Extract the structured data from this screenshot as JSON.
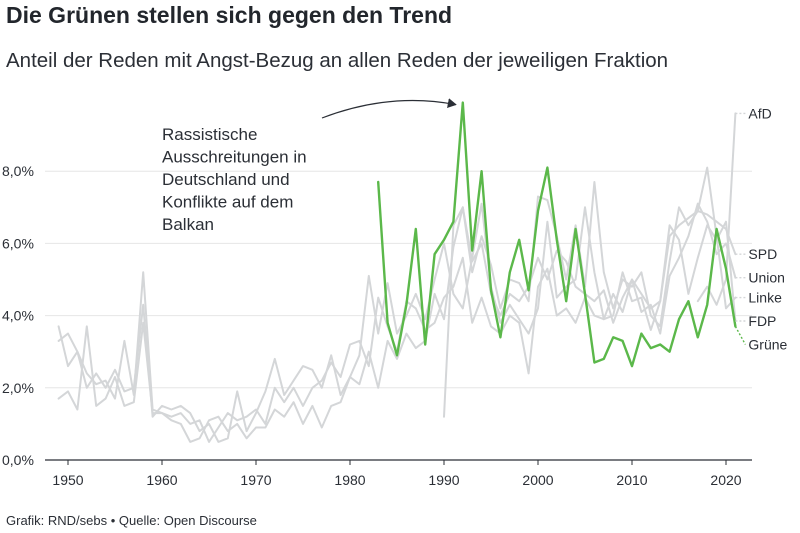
{
  "header": {
    "title": "Die Grünen stellen sich gegen den Trend",
    "subtitle": "Anteil der Reden mit Angst-Bezug an allen Reden der jeweiligen Fraktion"
  },
  "footer": {
    "source": "Grafik: RND/sebs • Quelle: Open Discourse"
  },
  "colors": {
    "highlight": "#5bb84a",
    "context": "#d4d6d8",
    "grid": "#e6e6e6",
    "text": "#2b2f36"
  },
  "chart_data": {
    "type": "line",
    "title": "Die Grünen stellen sich gegen den Trend",
    "subtitle": "Anteil der Reden mit Angst-Bezug an allen Reden der jeweiligen Fraktion",
    "xlim": [
      1949,
      2022
    ],
    "ylim": [
      0,
      10
    ],
    "x_ticks": [
      1950,
      1960,
      1970,
      1980,
      1990,
      2000,
      2010,
      2020
    ],
    "x_tick_labels": [
      "1950",
      "1960",
      "1970",
      "1980",
      "1990",
      "2000",
      "2010",
      "2020"
    ],
    "y_ticks": [
      0,
      2,
      4,
      6,
      8
    ],
    "y_tick_labels": [
      "0,0%",
      "2,0%",
      "4,0%",
      "6,0%",
      "8,0%"
    ],
    "grid": "horizontal",
    "annotation": {
      "lines": [
        "Rassistische",
        "Ausschreitungen in",
        "Deutschland und",
        "Konflikte auf dem",
        "Balkan"
      ],
      "target": [
        1992,
        9.9
      ]
    },
    "series": [
      {
        "name": "AfD",
        "highlight": false,
        "label_y": 9.6,
        "points": [
          [
            2017,
            4.4
          ],
          [
            2018,
            4.8
          ],
          [
            2019,
            4.3
          ],
          [
            2020,
            5.0
          ],
          [
            2021,
            9.6
          ]
        ]
      },
      {
        "name": "SPD",
        "highlight": false,
        "label_y": 5.7,
        "points": [
          [
            1949,
            1.7
          ],
          [
            1950,
            1.9
          ],
          [
            1951,
            1.4
          ],
          [
            1952,
            3.7
          ],
          [
            1953,
            1.5
          ],
          [
            1954,
            1.7
          ],
          [
            1955,
            2.3
          ],
          [
            1956,
            1.5
          ],
          [
            1957,
            1.6
          ],
          [
            1958,
            3.8
          ],
          [
            1959,
            1.3
          ],
          [
            1960,
            1.3
          ],
          [
            1961,
            1.1
          ],
          [
            1962,
            1.0
          ],
          [
            1963,
            0.5
          ],
          [
            1964,
            0.6
          ],
          [
            1965,
            1.1
          ],
          [
            1966,
            1.2
          ],
          [
            1967,
            0.8
          ],
          [
            1968,
            1.0
          ],
          [
            1969,
            0.6
          ],
          [
            1970,
            0.9
          ],
          [
            1971,
            0.9
          ],
          [
            1972,
            1.4
          ],
          [
            1973,
            1.2
          ],
          [
            1974,
            1.6
          ],
          [
            1975,
            1.0
          ],
          [
            1976,
            1.5
          ],
          [
            1977,
            0.9
          ],
          [
            1978,
            1.5
          ],
          [
            1979,
            1.6
          ],
          [
            1980,
            2.3
          ],
          [
            1981,
            2.1
          ],
          [
            1982,
            3.0
          ],
          [
            1983,
            2.0
          ],
          [
            1984,
            3.3
          ],
          [
            1985,
            2.8
          ],
          [
            1986,
            3.5
          ],
          [
            1987,
            3.1
          ],
          [
            1988,
            3.3
          ],
          [
            1989,
            4.6
          ],
          [
            1990,
            3.9
          ],
          [
            1991,
            5.9
          ],
          [
            1992,
            7.0
          ],
          [
            1993,
            5.5
          ],
          [
            1994,
            6.0
          ],
          [
            1995,
            4.6
          ],
          [
            1996,
            4.0
          ],
          [
            1997,
            4.6
          ],
          [
            1998,
            4.4
          ],
          [
            1999,
            4.8
          ],
          [
            2000,
            5.6
          ],
          [
            2001,
            5.0
          ],
          [
            2002,
            5.8
          ],
          [
            2003,
            5.5
          ],
          [
            2004,
            4.8
          ],
          [
            2005,
            4.6
          ],
          [
            2006,
            4.4
          ],
          [
            2007,
            4.7
          ],
          [
            2008,
            3.8
          ],
          [
            2009,
            4.5
          ],
          [
            2010,
            5.0
          ],
          [
            2011,
            4.6
          ],
          [
            2012,
            4.2
          ],
          [
            2013,
            4.4
          ],
          [
            2014,
            6.2
          ],
          [
            2015,
            6.5
          ],
          [
            2016,
            6.7
          ],
          [
            2017,
            6.9
          ],
          [
            2018,
            6.8
          ],
          [
            2019,
            6.6
          ],
          [
            2020,
            6.4
          ],
          [
            2021,
            5.7
          ]
        ]
      },
      {
        "name": "Union",
        "highlight": false,
        "label_y": 5.05,
        "points": [
          [
            1949,
            3.7
          ],
          [
            1950,
            2.6
          ],
          [
            1951,
            3.0
          ],
          [
            1952,
            2.4
          ],
          [
            1953,
            2.1
          ],
          [
            1954,
            2.2
          ],
          [
            1955,
            1.7
          ],
          [
            1956,
            3.3
          ],
          [
            1957,
            1.8
          ],
          [
            1958,
            5.2
          ],
          [
            1959,
            1.4
          ],
          [
            1960,
            1.3
          ],
          [
            1961,
            1.2
          ],
          [
            1962,
            1.3
          ],
          [
            1963,
            1.0
          ],
          [
            1964,
            1.1
          ],
          [
            1965,
            0.5
          ],
          [
            1966,
            0.9
          ],
          [
            1967,
            1.3
          ],
          [
            1968,
            1.1
          ],
          [
            1969,
            1.2
          ],
          [
            1970,
            1.4
          ],
          [
            1971,
            1.0
          ],
          [
            1972,
            2.0
          ],
          [
            1973,
            1.6
          ],
          [
            1974,
            2.0
          ],
          [
            1975,
            1.5
          ],
          [
            1976,
            2.0
          ],
          [
            1977,
            2.2
          ],
          [
            1978,
            2.7
          ],
          [
            1979,
            2.3
          ],
          [
            1980,
            3.2
          ],
          [
            1981,
            3.3
          ],
          [
            1982,
            2.6
          ],
          [
            1983,
            4.5
          ],
          [
            1984,
            3.7
          ],
          [
            1985,
            3.0
          ],
          [
            1986,
            4.4
          ],
          [
            1987,
            4.2
          ],
          [
            1988,
            3.6
          ],
          [
            1989,
            3.8
          ],
          [
            1990,
            4.5
          ],
          [
            1991,
            4.8
          ],
          [
            1992,
            5.6
          ],
          [
            1993,
            3.8
          ],
          [
            1994,
            4.5
          ],
          [
            1995,
            3.7
          ],
          [
            1996,
            3.5
          ],
          [
            1997,
            4.0
          ],
          [
            1998,
            3.8
          ],
          [
            1999,
            2.4
          ],
          [
            2000,
            4.8
          ],
          [
            2001,
            5.3
          ],
          [
            2002,
            4.0
          ],
          [
            2003,
            4.2
          ],
          [
            2004,
            3.8
          ],
          [
            2005,
            4.5
          ],
          [
            2006,
            4.0
          ],
          [
            2007,
            3.9
          ],
          [
            2008,
            4.6
          ],
          [
            2009,
            4.1
          ],
          [
            2010,
            5.0
          ],
          [
            2011,
            4.1
          ],
          [
            2012,
            4.3
          ],
          [
            2013,
            3.5
          ],
          [
            2014,
            5.1
          ],
          [
            2015,
            5.6
          ],
          [
            2016,
            6.2
          ],
          [
            2017,
            7.1
          ],
          [
            2018,
            6.6
          ],
          [
            2019,
            5.7
          ],
          [
            2020,
            6.0
          ],
          [
            2021,
            5.05
          ]
        ]
      },
      {
        "name": "Linke",
        "highlight": false,
        "label_y": 4.5,
        "points": [
          [
            1990,
            1.2
          ],
          [
            1991,
            6.5
          ],
          [
            1992,
            7.0
          ],
          [
            1993,
            5.2
          ],
          [
            1994,
            6.2
          ],
          [
            1995,
            5.4
          ],
          [
            1996,
            4.2
          ],
          [
            1997,
            5.0
          ],
          [
            1998,
            4.9
          ],
          [
            1999,
            4.4
          ],
          [
            2000,
            7.3
          ],
          [
            2001,
            7.2
          ],
          [
            2002,
            6.2
          ],
          [
            2003,
            5.0
          ],
          [
            2004,
            6.5
          ],
          [
            2005,
            4.8
          ],
          [
            2006,
            7.7
          ],
          [
            2007,
            5.2
          ],
          [
            2008,
            4.2
          ],
          [
            2009,
            5.0
          ],
          [
            2010,
            4.8
          ],
          [
            2011,
            5.2
          ],
          [
            2012,
            4.0
          ],
          [
            2013,
            3.7
          ],
          [
            2014,
            5.5
          ],
          [
            2015,
            7.0
          ],
          [
            2016,
            6.5
          ],
          [
            2017,
            6.9
          ],
          [
            2018,
            8.1
          ],
          [
            2019,
            6.2
          ],
          [
            2020,
            4.2
          ],
          [
            2021,
            4.5
          ]
        ]
      },
      {
        "name": "FDP",
        "highlight": false,
        "label_y": 3.85,
        "points": [
          [
            1949,
            3.3
          ],
          [
            1950,
            3.5
          ],
          [
            1951,
            3.0
          ],
          [
            1952,
            2.0
          ],
          [
            1953,
            2.4
          ],
          [
            1954,
            2.0
          ],
          [
            1955,
            2.5
          ],
          [
            1956,
            1.9
          ],
          [
            1957,
            2.0
          ],
          [
            1958,
            4.3
          ],
          [
            1959,
            1.2
          ],
          [
            1960,
            1.5
          ],
          [
            1961,
            1.4
          ],
          [
            1962,
            1.5
          ],
          [
            1963,
            1.3
          ],
          [
            1964,
            0.8
          ],
          [
            1965,
            1.0
          ],
          [
            1966,
            0.5
          ],
          [
            1967,
            0.6
          ],
          [
            1968,
            1.9
          ],
          [
            1969,
            0.8
          ],
          [
            1970,
            1.3
          ],
          [
            1971,
            1.9
          ],
          [
            1972,
            2.8
          ],
          [
            1973,
            1.8
          ],
          [
            1974,
            2.2
          ],
          [
            1975,
            2.6
          ],
          [
            1976,
            2.5
          ],
          [
            1977,
            2.0
          ],
          [
            1978,
            2.9
          ],
          [
            1979,
            1.8
          ],
          [
            1980,
            2.3
          ],
          [
            1981,
            2.9
          ],
          [
            1982,
            5.1
          ],
          [
            1983,
            3.5
          ],
          [
            1984,
            4.9
          ],
          [
            1985,
            3.5
          ],
          [
            1986,
            4.0
          ],
          [
            1987,
            4.6
          ],
          [
            1988,
            3.9
          ],
          [
            1989,
            5.0
          ],
          [
            1990,
            6.0
          ],
          [
            1991,
            4.6
          ],
          [
            1992,
            4.2
          ],
          [
            1993,
            5.6
          ],
          [
            1994,
            7.1
          ],
          [
            1995,
            4.8
          ],
          [
            1996,
            3.8
          ],
          [
            1997,
            4.3
          ],
          [
            1998,
            3.9
          ],
          [
            1999,
            3.5
          ],
          [
            2000,
            4.2
          ],
          [
            2001,
            6.6
          ],
          [
            2002,
            4.5
          ],
          [
            2003,
            4.8
          ],
          [
            2004,
            5.0
          ],
          [
            2005,
            7.0
          ],
          [
            2006,
            5.2
          ],
          [
            2007,
            3.9
          ],
          [
            2008,
            4.0
          ],
          [
            2009,
            5.2
          ],
          [
            2010,
            4.4
          ],
          [
            2011,
            4.5
          ],
          [
            2012,
            3.6
          ],
          [
            2013,
            4.4
          ],
          [
            2014,
            6.5
          ],
          [
            2015,
            6.1
          ],
          [
            2016,
            4.6
          ],
          [
            2017,
            5.6
          ],
          [
            2018,
            6.5
          ],
          [
            2019,
            6.1
          ],
          [
            2020,
            6.6
          ],
          [
            2021,
            3.85
          ]
        ]
      },
      {
        "name": "Grüne",
        "highlight": true,
        "label_y": 3.2,
        "points": [
          [
            1983,
            7.7
          ],
          [
            1984,
            3.8
          ],
          [
            1985,
            2.9
          ],
          [
            1986,
            4.3
          ],
          [
            1987,
            6.4
          ],
          [
            1988,
            3.2
          ],
          [
            1989,
            5.7
          ],
          [
            1990,
            6.1
          ],
          [
            1991,
            6.6
          ],
          [
            1992,
            9.9
          ],
          [
            1993,
            5.8
          ],
          [
            1994,
            8.0
          ],
          [
            1995,
            4.7
          ],
          [
            1996,
            3.4
          ],
          [
            1997,
            5.2
          ],
          [
            1998,
            6.1
          ],
          [
            1999,
            4.7
          ],
          [
            2000,
            6.9
          ],
          [
            2001,
            8.1
          ],
          [
            2002,
            6.1
          ],
          [
            2003,
            4.4
          ],
          [
            2004,
            6.4
          ],
          [
            2005,
            4.6
          ],
          [
            2006,
            2.7
          ],
          [
            2007,
            2.8
          ],
          [
            2008,
            3.4
          ],
          [
            2009,
            3.3
          ],
          [
            2010,
            2.6
          ],
          [
            2011,
            3.5
          ],
          [
            2012,
            3.1
          ],
          [
            2013,
            3.2
          ],
          [
            2014,
            3.0
          ],
          [
            2015,
            3.9
          ],
          [
            2016,
            4.4
          ],
          [
            2017,
            3.4
          ],
          [
            2018,
            4.3
          ],
          [
            2019,
            6.4
          ],
          [
            2020,
            5.3
          ],
          [
            2021,
            3.7
          ]
        ]
      }
    ]
  }
}
